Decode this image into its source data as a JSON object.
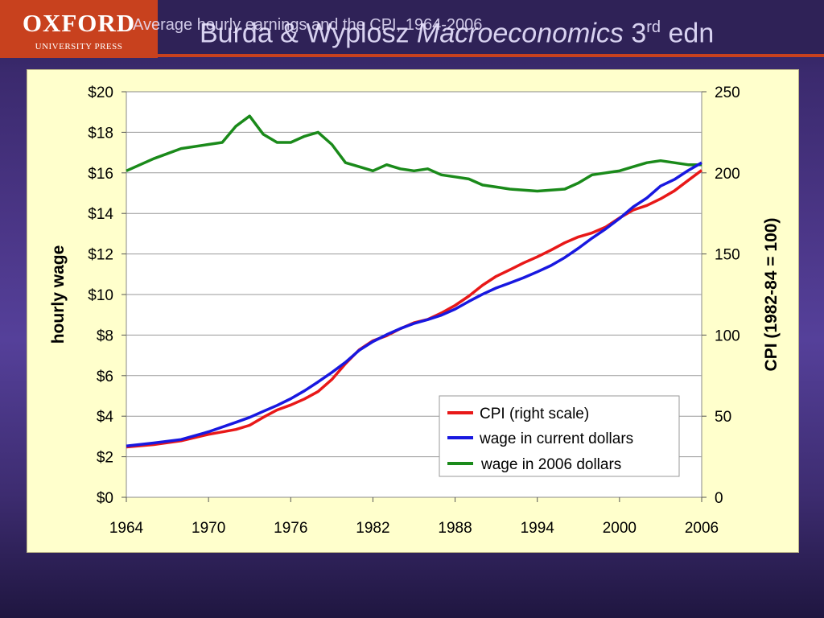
{
  "header": {
    "logo_brand": "OXFORD",
    "logo_sub": "UNIVERSITY PRESS",
    "book_title_a": "Burda & Wyplosz ",
    "book_title_b": "Macroeconomics",
    "book_title_c": " 3",
    "book_title_sup": "rd",
    "book_title_d": " edn",
    "slide_title": "Average hourly earnings and the CPI, 1964-2006"
  },
  "colors": {
    "cpi": "#e81818",
    "wage_current": "#1818e0",
    "wage_2006": "#1a8a1a",
    "panel": "#ffffcc",
    "accent": "#c8411e"
  },
  "chart_data": {
    "type": "line",
    "title": "Average hourly earnings and the CPI, 1964-2006",
    "xlabel": "",
    "ylabel": "hourly wage",
    "y2label": "CPI  (1982-84 = 100)",
    "xlim": [
      1964,
      2006
    ],
    "ylim": [
      0,
      20
    ],
    "y2lim": [
      0,
      250
    ],
    "x_ticks": [
      "1964",
      "1970",
      "1976",
      "1982",
      "1988",
      "1994",
      "2000",
      "2006"
    ],
    "y_ticks": [
      "$0",
      "$2",
      "$4",
      "$6",
      "$8",
      "$10",
      "$12",
      "$14",
      "$16",
      "$18",
      "$20"
    ],
    "y2_ticks": [
      "0",
      "50",
      "100",
      "150",
      "200",
      "250"
    ],
    "grid": "horizontal",
    "legend_position": "bottom-right",
    "series": [
      {
        "name": "CPI  (right scale)",
        "axis": "right",
        "color": "#e81818",
        "x": [
          1964,
          1966,
          1968,
          1970,
          1972,
          1973,
          1974,
          1975,
          1976,
          1977,
          1978,
          1979,
          1980,
          1981,
          1982,
          1983,
          1984,
          1985,
          1986,
          1987,
          1988,
          1989,
          1990,
          1991,
          1992,
          1993,
          1994,
          1995,
          1996,
          1997,
          1998,
          1999,
          2000,
          2001,
          2002,
          2003,
          2004,
          2005,
          2006
        ],
        "y": [
          31,
          32.5,
          34.8,
          38.8,
          41.8,
          44.4,
          49.3,
          53.8,
          56.9,
          60.6,
          65.2,
          72.6,
          82.4,
          90.9,
          96.5,
          99.6,
          103.9,
          107.6,
          109.6,
          113.6,
          118.3,
          124,
          130.7,
          136.2,
          140.3,
          144.5,
          148.2,
          152.4,
          156.9,
          160.5,
          163,
          166.6,
          172.2,
          177.1,
          179.9,
          184,
          188.9,
          195.3,
          201.6
        ]
      },
      {
        "name": "wage in current dollars",
        "axis": "left",
        "color": "#1818e0",
        "x": [
          1964,
          1966,
          1968,
          1970,
          1972,
          1973,
          1974,
          1975,
          1976,
          1977,
          1978,
          1979,
          1980,
          1981,
          1982,
          1983,
          1984,
          1985,
          1986,
          1987,
          1988,
          1989,
          1990,
          1991,
          1992,
          1993,
          1994,
          1995,
          1996,
          1997,
          1998,
          1999,
          2000,
          2001,
          2002,
          2003,
          2004,
          2005,
          2006
        ],
        "y": [
          2.53,
          2.68,
          2.85,
          3.23,
          3.7,
          3.94,
          4.24,
          4.53,
          4.86,
          5.25,
          5.69,
          6.16,
          6.66,
          7.25,
          7.68,
          8.02,
          8.32,
          8.57,
          8.76,
          8.98,
          9.28,
          9.66,
          10.01,
          10.32,
          10.57,
          10.83,
          11.12,
          11.43,
          11.82,
          12.28,
          12.78,
          13.24,
          13.75,
          14.32,
          14.76,
          15.35,
          15.67,
          16.11,
          16.5
        ]
      },
      {
        "name": "wage in 2006 dollars",
        "axis": "left",
        "color": "#1a8a1a",
        "x": [
          1964,
          1966,
          1968,
          1970,
          1971,
          1972,
          1973,
          1974,
          1975,
          1976,
          1977,
          1978,
          1979,
          1980,
          1981,
          1982,
          1983,
          1984,
          1985,
          1986,
          1987,
          1988,
          1989,
          1990,
          1991,
          1992,
          1993,
          1994,
          1995,
          1996,
          1997,
          1998,
          1999,
          2000,
          2001,
          2002,
          2003,
          2004,
          2005,
          2006
        ],
        "y": [
          16.1,
          16.7,
          17.2,
          17.4,
          17.5,
          18.3,
          18.8,
          17.9,
          17.5,
          17.5,
          17.8,
          18.0,
          17.4,
          16.5,
          16.3,
          16.1,
          16.4,
          16.2,
          16.1,
          16.2,
          15.9,
          15.8,
          15.7,
          15.4,
          15.3,
          15.2,
          15.15,
          15.1,
          15.15,
          15.2,
          15.5,
          15.9,
          16.0,
          16.1,
          16.3,
          16.5,
          16.6,
          16.5,
          16.4,
          16.4
        ]
      }
    ]
  }
}
